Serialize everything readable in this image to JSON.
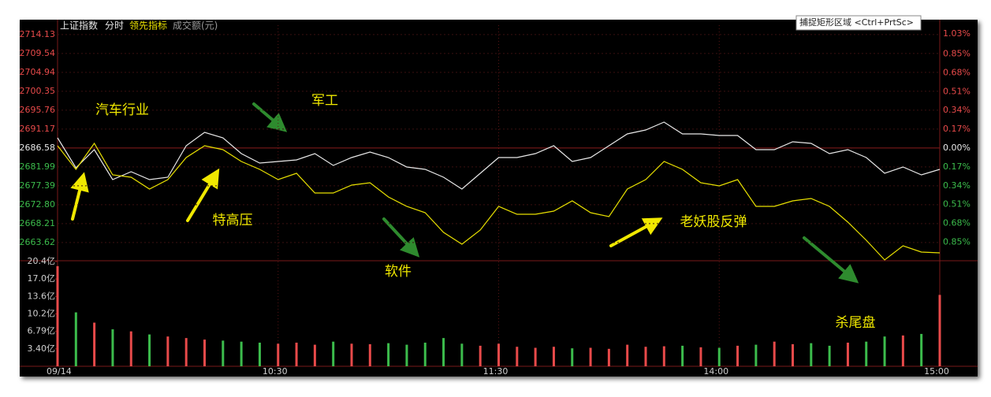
{
  "tooltip": "捕捉矩形区域 <Ctrl+PrtSc>",
  "chart_data": [
    {
      "type": "line",
      "period": "分时",
      "annotations": [
        "汽车行业",
        "军工",
        "特高压",
        "软件",
        "老妖股反弹",
        "杀尾盘"
      ],
      "x": [
        0,
        5,
        10,
        15,
        20,
        25,
        30,
        35,
        40,
        45,
        50,
        55,
        60,
        65,
        70,
        75,
        80,
        85,
        90,
        95,
        100,
        105,
        110,
        115,
        120,
        125,
        130,
        135,
        140,
        145,
        150,
        155,
        160,
        165,
        170,
        175,
        180,
        185,
        190,
        195,
        200,
        205,
        210,
        215,
        220,
        225,
        230,
        235,
        240
      ],
      "xlim": [
        0,
        240
      ],
      "xticks": [
        {
          "value": 0,
          "label": "09/14"
        },
        {
          "value": 60,
          "label": "10:30"
        },
        {
          "value": 120,
          "label": "11:30"
        },
        {
          "value": 180,
          "label": "14:00"
        },
        {
          "value": 240,
          "label": "15:00"
        }
      ],
      "ylim": [
        2659.39,
        2716.4
      ],
      "yticks": [
        2714.13,
        2709.54,
        2704.94,
        2700.35,
        2695.76,
        2691.17,
        2686.58,
        2681.99,
        2677.39,
        {
          "value": 2672.8,
          "label": "2672.80"
        },
        2668.21,
        2663.62
      ],
      "y2lim": [
        -1.01,
        1.11
      ],
      "y2ticks": [
        {
          "value": 1.03,
          "label": "1.03%"
        },
        {
          "value": 0.85,
          "label": "0.85%"
        },
        {
          "value": 0.68,
          "label": "0.68%"
        },
        {
          "value": 0.51,
          "label": "0.51%"
        },
        {
          "value": 0.34,
          "label": "0.34%"
        },
        {
          "value": 0.17,
          "label": "0.17%"
        },
        {
          "value": 0,
          "label": "0.00%"
        },
        {
          "value": -0.17,
          "label": "0.17%"
        },
        {
          "value": -0.34,
          "label": "0.34%"
        },
        {
          "value": -0.51,
          "label": "0.51%"
        },
        {
          "value": -0.68,
          "label": "0.68%"
        },
        {
          "value": -0.85,
          "label": "0.85%"
        }
      ],
      "grid": true,
      "series": [
        {
          "name": "上证指数",
          "color": "#e8e8e8",
          "values": [
            2689.04,
            2681.77,
            2686.17,
            2678.91,
            2680.82,
            2678.91,
            2679.48,
            2687.13,
            2690.38,
            2689.04,
            2685.22,
            2682.92,
            2683.31,
            2683.69,
            2685.22,
            2682.35,
            2684.26,
            2685.6,
            2684.26,
            2681.97,
            2681.39,
            2679.48,
            2676.61,
            2680.44,
            2684.26,
            2684.26,
            2685.22,
            2687.13,
            2683.31,
            2684.26,
            2687.13,
            2690.0,
            2690.96,
            2692.87,
            2690.0,
            2690.0,
            2689.62,
            2689.62,
            2686.17,
            2686.17,
            2688.09,
            2687.7,
            2685.22,
            2686.17,
            2684.26,
            2680.44,
            2681.97,
            2680.05,
            2681.39
          ]
        },
        {
          "name": "领先指标",
          "color": "#e8e000",
          "values": [
            2687.13,
            2681.39,
            2687.7,
            2680.05,
            2679.48,
            2676.61,
            2678.91,
            2684.26,
            2687.13,
            2686.17,
            2683.31,
            2681.39,
            2678.91,
            2680.44,
            2675.65,
            2675.65,
            2677.57,
            2678.14,
            2674.7,
            2672.4,
            2670.87,
            2666.09,
            2663.22,
            2666.66,
            2672.4,
            2670.49,
            2670.49,
            2671.25,
            2673.74,
            2670.87,
            2669.91,
            2676.61,
            2678.91,
            2683.31,
            2681.39,
            2678.14,
            2677.37,
            2678.91,
            2672.4,
            2672.4,
            2673.74,
            2674.31,
            2672.4,
            2668.57,
            2664.18,
            2659.39,
            2662.84,
            2661.31,
            2661.11
          ]
        }
      ]
    },
    {
      "type": "bar",
      "title": "成交额(元)",
      "x": [
        0,
        5,
        10,
        15,
        20,
        25,
        30,
        35,
        40,
        45,
        50,
        55,
        60,
        65,
        70,
        75,
        80,
        85,
        90,
        95,
        100,
        105,
        110,
        115,
        120,
        125,
        130,
        135,
        140,
        145,
        150,
        155,
        160,
        165,
        170,
        175,
        180,
        185,
        190,
        195,
        200,
        205,
        210,
        215,
        220,
        225,
        230,
        235,
        240
      ],
      "xlim": [
        0,
        240
      ],
      "ylim": [
        0,
        20.4
      ],
      "yticks": [
        {
          "value": 20.4,
          "label": "20.4亿"
        },
        {
          "value": 17.0,
          "label": "17.0亿"
        },
        {
          "value": 13.6,
          "label": "13.6亿"
        },
        {
          "value": 10.2,
          "label": "10.2亿"
        },
        {
          "value": 6.79,
          "label": "6.79亿"
        },
        {
          "value": 3.4,
          "label": "3.40亿"
        }
      ],
      "up_color": "#e84a4a",
      "down_color": "#3cbc4c",
      "values": [
        19.5,
        10.5,
        8.5,
        7.2,
        6.8,
        6.2,
        5.8,
        5.5,
        5.2,
        5.0,
        4.8,
        4.6,
        4.4,
        4.6,
        4.2,
        4.8,
        4.4,
        4.3,
        4.5,
        4.2,
        4.6,
        5.5,
        4.4,
        4.0,
        4.4,
        3.8,
        3.6,
        3.8,
        3.5,
        3.6,
        3.4,
        4.2,
        3.8,
        3.9,
        4.0,
        3.7,
        3.6,
        4.0,
        4.2,
        4.8,
        4.3,
        4.5,
        4.0,
        4.6,
        4.8,
        5.8,
        6.0,
        6.3,
        13.9
      ]
    }
  ]
}
